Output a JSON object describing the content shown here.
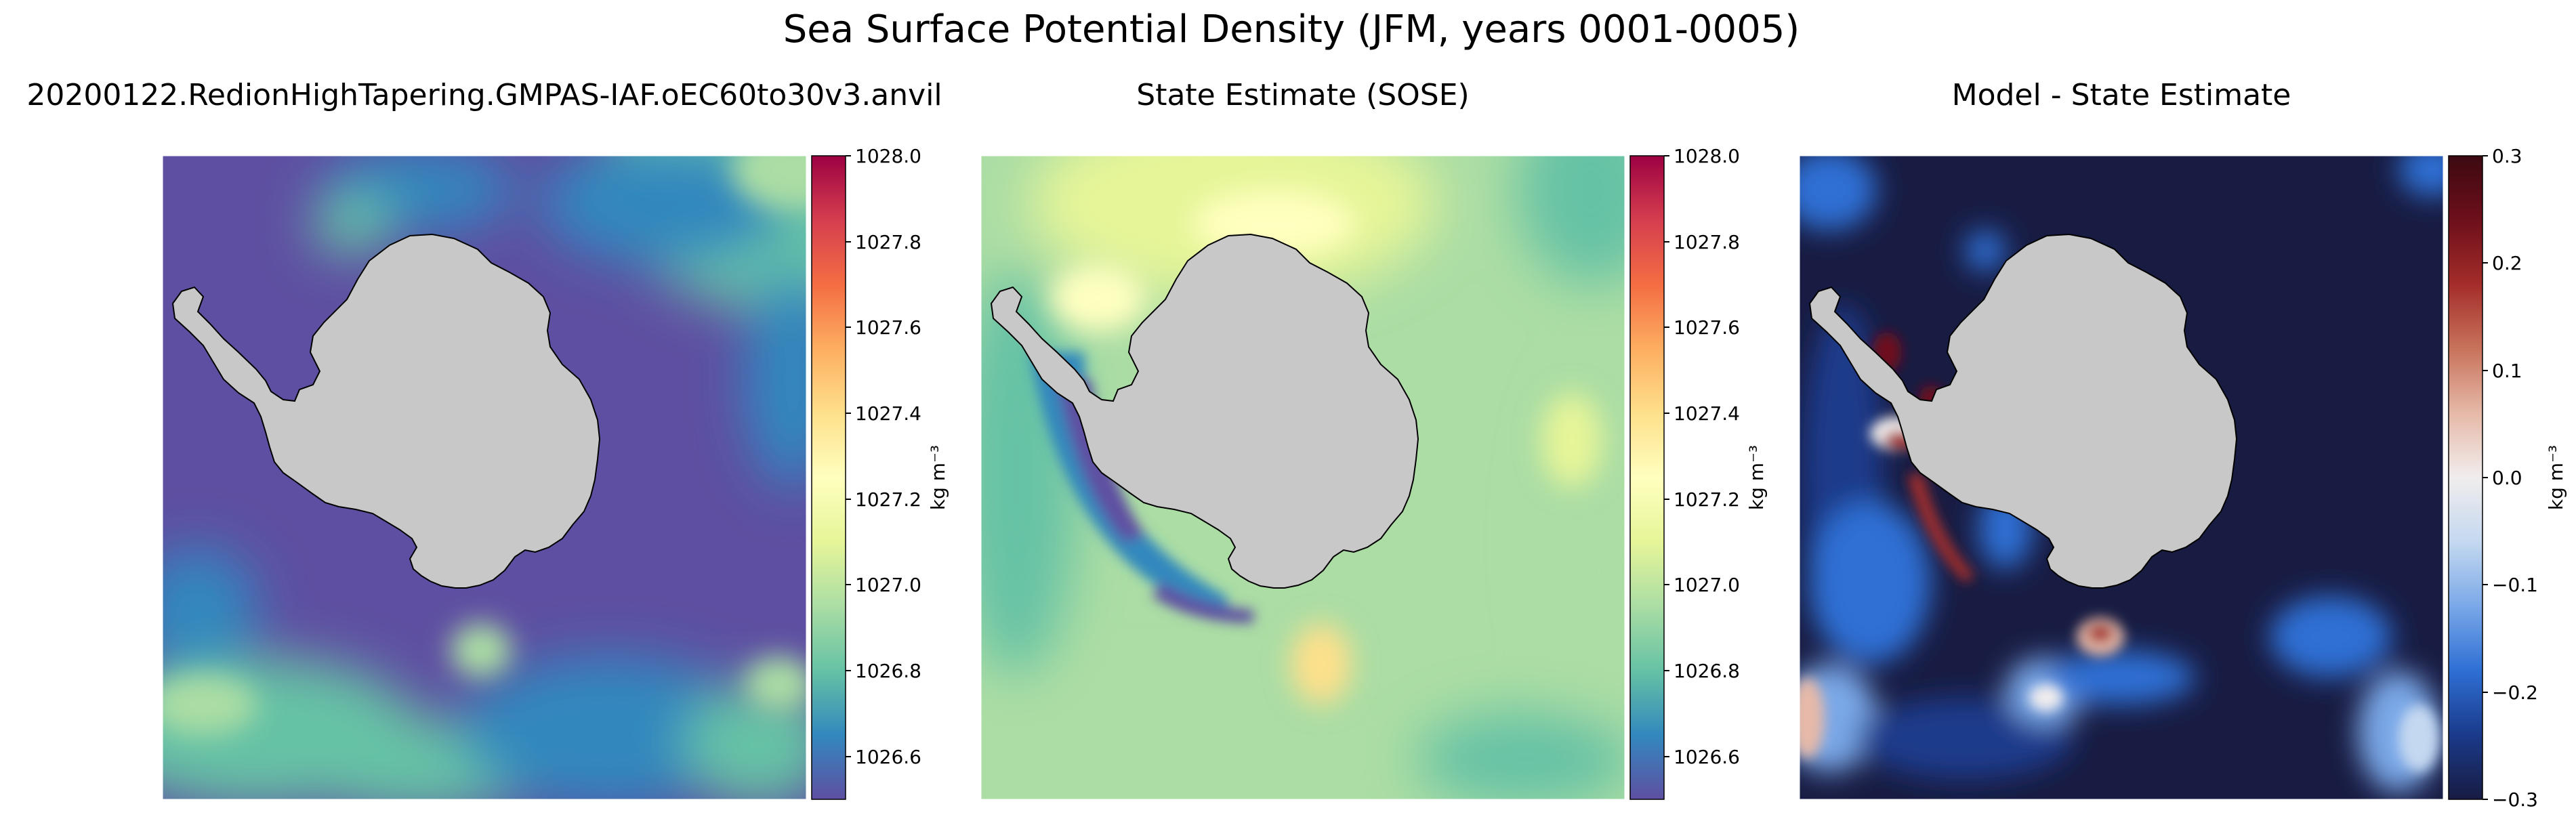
{
  "chart_data": {
    "type": "heatmap",
    "suptitle": "Sea Surface Potential Density (JFM, years 0001-0005)",
    "panels": [
      {
        "title": "20200122.RedionHighTapering.GMPAS-IAF.oEC60to30v3.anvil",
        "colormap": "Spectral_r",
        "vmin": 1026.5,
        "vmax": 1028.0,
        "colorbar_label": "kg m⁻³",
        "colorbar_ticks": [
          "1028.0",
          "1027.8",
          "1027.6",
          "1027.4",
          "1027.2",
          "1027.0",
          "1026.8",
          "1026.6"
        ],
        "colorbar_tick_values": [
          1028.0,
          1027.8,
          1027.6,
          1027.4,
          1027.2,
          1027.0,
          1026.8,
          1026.6
        ]
      },
      {
        "title": "State Estimate (SOSE)",
        "colormap": "Spectral_r",
        "vmin": 1026.5,
        "vmax": 1028.0,
        "colorbar_label": "kg m⁻³",
        "colorbar_ticks": [
          "1028.0",
          "1027.8",
          "1027.6",
          "1027.4",
          "1027.2",
          "1027.0",
          "1026.8",
          "1026.6"
        ],
        "colorbar_tick_values": [
          1028.0,
          1027.8,
          1027.6,
          1027.4,
          1027.2,
          1027.0,
          1026.8,
          1026.6
        ]
      },
      {
        "title": "Model - State Estimate",
        "colormap": "balance",
        "vmin": -0.3,
        "vmax": 0.3,
        "colorbar_label": "kg m⁻³",
        "colorbar_ticks": [
          "0.3",
          "0.2",
          "0.1",
          "0.0",
          "−0.1",
          "−0.2",
          "−0.3"
        ],
        "colorbar_tick_values": [
          0.3,
          0.2,
          0.1,
          0.0,
          -0.1,
          -0.2,
          -0.3
        ]
      }
    ]
  },
  "colors": {
    "land": "#c8c8c8",
    "spectral": [
      "#5e4fa2",
      "#3288bd",
      "#66c2a5",
      "#abdda4",
      "#e6f598",
      "#ffffbf",
      "#fee08b",
      "#fdae61",
      "#f46d43",
      "#d53e4f",
      "#9e0142"
    ],
    "balance": [
      "#181c43",
      "#1a3a8a",
      "#2e6fd4",
      "#7aa8e8",
      "#c4d8f0",
      "#f1eded",
      "#e6b9a8",
      "#c8735c",
      "#a42d2a",
      "#6e0f1b",
      "#3c0911"
    ]
  }
}
